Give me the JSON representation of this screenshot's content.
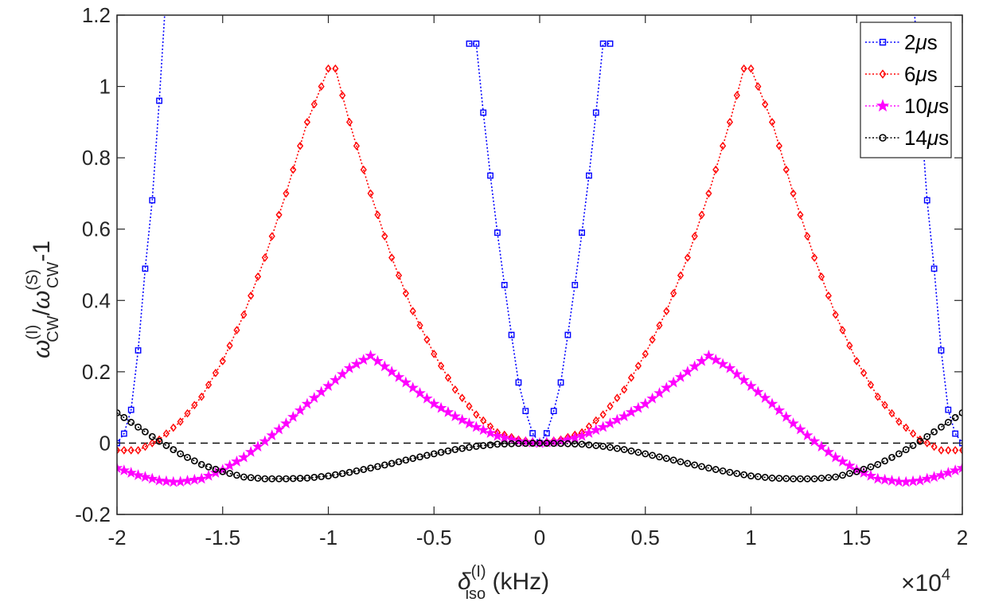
{
  "chart_data": {
    "type": "line",
    "xlabel": {
      "symbol": "δ",
      "superscript": "(I)",
      "subscript": "iso",
      "unit": " (kHz)"
    },
    "ylabel": {
      "w1": "ω",
      "w1_sup": "(I)",
      "w1_sub": "CW",
      "slash": "/",
      "w2": "ω",
      "w2_sup": "(S)",
      "w2_sub": "CW",
      "tail": "-1"
    },
    "x_multiplier": {
      "times": "×",
      "base": "10",
      "exponent": "4"
    },
    "xlim": [
      -2,
      2
    ],
    "ylim": [
      -0.2,
      1.2
    ],
    "x_ticks": [
      -2,
      -1.5,
      -1,
      -0.5,
      0,
      0.5,
      1,
      1.5,
      2
    ],
    "x_tick_labels": [
      "-2",
      "-1.5",
      "-1",
      "-0.5",
      "0",
      "0.5",
      "1",
      "1.5",
      "2"
    ],
    "y_ticks": [
      -0.2,
      0,
      0.2,
      0.4,
      0.6,
      0.8,
      1,
      1.2
    ],
    "y_tick_labels": [
      "-0.2",
      "0",
      "0.2",
      "0.4",
      "0.6",
      "0.8",
      "1",
      "1.2"
    ],
    "grid": false,
    "legend_position": "top-right",
    "reference_line": {
      "y": 0,
      "style": "dashed",
      "color": "#000000"
    },
    "series": [
      {
        "name": "2μs",
        "label_value": "2",
        "label_mu": "μ",
        "label_unit": "s",
        "color": "#0000FF",
        "marker": "square",
        "n_points": 121,
        "x": [
          -2,
          -1.95,
          -1.9,
          -1.85,
          -1.8,
          -1.75,
          -1.7,
          -1.7,
          -1.75,
          -1.8,
          -1.85,
          -1.9,
          -1.95,
          -2
        ],
        "x_sym": [
          0.3,
          0.25,
          0.2,
          0.15,
          0.1,
          0.05,
          0.02,
          0
        ],
        "y_sym": [
          1.12,
          0.83,
          0.59,
          0.37,
          0.17,
          0.05,
          0.01,
          0
        ],
        "x_left": [
          -2,
          -1.97,
          -1.93,
          -1.9,
          -1.87,
          -1.83,
          -1.8,
          -1.77,
          -1.73,
          -1.7
        ],
        "y_left": [
          0,
          0.02,
          0.1,
          0.26,
          0.47,
          0.7,
          0.96,
          1.25,
          1.55,
          1.9
        ]
      },
      {
        "name": "6μs",
        "label_value": "6",
        "label_mu": "μ",
        "label_unit": "s",
        "color": "#FF0000",
        "marker": "diamond",
        "n_points": 121,
        "x": [
          -2,
          -1.9,
          -1.8,
          -1.7,
          -1.6,
          -1.5,
          -1.4,
          -1.3,
          -1.2,
          -1.1,
          -0.98,
          -0.9,
          -0.8,
          -0.7,
          -0.6,
          -0.5,
          -0.4,
          -0.3,
          -0.2,
          -0.1,
          0,
          0.1,
          0.2,
          0.3,
          0.4,
          0.5,
          0.6,
          0.7,
          0.8,
          0.9,
          0.98,
          1.1,
          1.2,
          1.3,
          1.4,
          1.5,
          1.6,
          1.7,
          1.8,
          1.9,
          2
        ],
        "y": [
          -0.02,
          -0.02,
          0.01,
          0.06,
          0.13,
          0.23,
          0.36,
          0.52,
          0.7,
          0.9,
          1.08,
          0.9,
          0.7,
          0.52,
          0.37,
          0.25,
          0.15,
          0.08,
          0.03,
          0.01,
          0,
          0.01,
          0.03,
          0.08,
          0.15,
          0.25,
          0.37,
          0.52,
          0.7,
          0.9,
          1.08,
          0.9,
          0.7,
          0.52,
          0.36,
          0.23,
          0.13,
          0.06,
          0.01,
          -0.02,
          -0.02
        ]
      },
      {
        "name": "10μs",
        "label_value": "10",
        "label_mu": "μ",
        "label_unit": "s",
        "color": "#FF00FF",
        "marker": "star",
        "n_points": 121,
        "x": [
          -2,
          -1.9,
          -1.8,
          -1.72,
          -1.6,
          -1.5,
          -1.4,
          -1.3,
          -1.2,
          -1.1,
          -1,
          -0.9,
          -0.8,
          -0.7,
          -0.6,
          -0.5,
          -0.4,
          -0.3,
          -0.2,
          -0.1,
          0,
          0.1,
          0.2,
          0.3,
          0.4,
          0.5,
          0.6,
          0.7,
          0.8,
          0.9,
          1,
          1.1,
          1.2,
          1.3,
          1.4,
          1.5,
          1.6,
          1.72,
          1.8,
          1.9,
          2
        ],
        "y": [
          -0.07,
          -0.09,
          -0.105,
          -0.11,
          -0.1,
          -0.075,
          -0.04,
          0.005,
          0.055,
          0.11,
          0.16,
          0.21,
          0.245,
          0.2,
          0.155,
          0.11,
          0.075,
          0.045,
          0.02,
          0.005,
          0,
          0.005,
          0.02,
          0.045,
          0.075,
          0.11,
          0.155,
          0.2,
          0.245,
          0.21,
          0.16,
          0.11,
          0.055,
          0.005,
          -0.04,
          -0.075,
          -0.1,
          -0.11,
          -0.105,
          -0.09,
          -0.07
        ]
      },
      {
        "name": "14μs",
        "label_value": "14",
        "label_mu": "μ",
        "label_unit": "s",
        "color": "#000000",
        "marker": "circle",
        "n_points": 121,
        "x": [
          -2,
          -1.9,
          -1.8,
          -1.7,
          -1.6,
          -1.5,
          -1.4,
          -1.3,
          -1.2,
          -1.1,
          -1,
          -0.9,
          -0.8,
          -0.7,
          -0.6,
          -0.5,
          -0.4,
          -0.3,
          -0.2,
          -0.1,
          0,
          0.1,
          0.2,
          0.3,
          0.4,
          0.5,
          0.6,
          0.7,
          0.8,
          0.9,
          1,
          1.1,
          1.2,
          1.3,
          1.4,
          1.5,
          1.6,
          1.7,
          1.8,
          1.9,
          2
        ],
        "y": [
          0.085,
          0.045,
          0.005,
          -0.03,
          -0.06,
          -0.08,
          -0.095,
          -0.1,
          -0.1,
          -0.098,
          -0.092,
          -0.082,
          -0.07,
          -0.057,
          -0.043,
          -0.03,
          -0.018,
          -0.009,
          -0.003,
          -0.001,
          0,
          -0.001,
          -0.003,
          -0.009,
          -0.018,
          -0.03,
          -0.043,
          -0.057,
          -0.07,
          -0.082,
          -0.092,
          -0.098,
          -0.1,
          -0.1,
          -0.095,
          -0.08,
          -0.06,
          -0.03,
          0.005,
          0.045,
          0.085
        ]
      }
    ]
  }
}
